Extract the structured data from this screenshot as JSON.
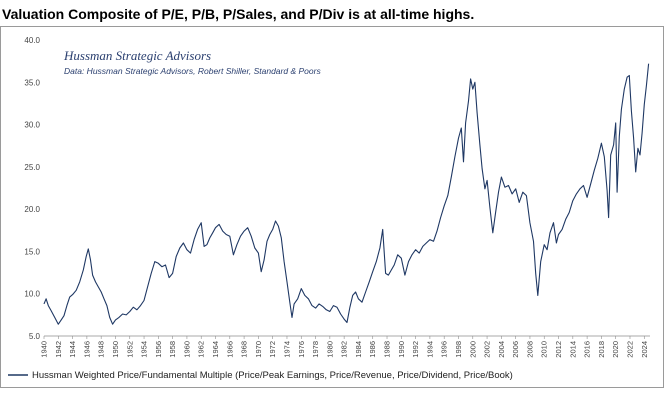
{
  "headline": "Valuation Composite of P/E, P/B, P/Sales, and P/Div is at all-time highs.",
  "chart_data": {
    "type": "line",
    "annotation_title": "Hussman Strategic Advisors",
    "annotation_source": "Data: Hussman Strategic Advisors, Robert Shiller, Standard & Poors",
    "ylim": [
      5,
      40
    ],
    "xlim": [
      1940,
      2024.8
    ],
    "y_ticks": [
      "5.0",
      "10.0",
      "15.0",
      "20.0",
      "25.0",
      "30.0",
      "35.0",
      "40.0"
    ],
    "x_ticks": [
      "1940",
      "1942",
      "1944",
      "1946",
      "1948",
      "1950",
      "1952",
      "1954",
      "1956",
      "1958",
      "1960",
      "1962",
      "1964",
      "1966",
      "1968",
      "1970",
      "1972",
      "1974",
      "1976",
      "1978",
      "1980",
      "1982",
      "1984",
      "1986",
      "1988",
      "1990",
      "1992",
      "1994",
      "1996",
      "1998",
      "2000",
      "2002",
      "2004",
      "2006",
      "2008",
      "2010",
      "2012",
      "2014",
      "2016",
      "2018",
      "2020",
      "2022",
      "2024"
    ],
    "grid": false,
    "legend_position": "bottom",
    "line_color": "#1f3864",
    "series": [
      {
        "name": "Hussman Weighted Price/Fundamental Multiple (Price/Peak Earnings, Price/Revenue, Price/Dividend, Price/Book)",
        "points": [
          [
            1940.0,
            8.8
          ],
          [
            1940.3,
            9.4
          ],
          [
            1940.6,
            8.6
          ],
          [
            1941.0,
            8.0
          ],
          [
            1941.5,
            7.2
          ],
          [
            1942.0,
            6.4
          ],
          [
            1942.4,
            6.9
          ],
          [
            1942.8,
            7.4
          ],
          [
            1943.2,
            8.6
          ],
          [
            1943.6,
            9.6
          ],
          [
            1944.0,
            9.9
          ],
          [
            1944.5,
            10.4
          ],
          [
            1945.0,
            11.4
          ],
          [
            1945.5,
            12.8
          ],
          [
            1945.9,
            14.4
          ],
          [
            1946.2,
            15.3
          ],
          [
            1946.5,
            14.0
          ],
          [
            1946.8,
            12.2
          ],
          [
            1947.2,
            11.4
          ],
          [
            1947.6,
            10.8
          ],
          [
            1948.0,
            10.2
          ],
          [
            1948.4,
            9.4
          ],
          [
            1948.8,
            8.6
          ],
          [
            1949.2,
            7.2
          ],
          [
            1949.6,
            6.4
          ],
          [
            1950.0,
            6.9
          ],
          [
            1950.5,
            7.2
          ],
          [
            1951.0,
            7.6
          ],
          [
            1951.5,
            7.5
          ],
          [
            1952.0,
            7.9
          ],
          [
            1952.5,
            8.4
          ],
          [
            1953.0,
            8.1
          ],
          [
            1953.5,
            8.6
          ],
          [
            1954.0,
            9.2
          ],
          [
            1954.5,
            10.8
          ],
          [
            1955.0,
            12.4
          ],
          [
            1955.5,
            13.8
          ],
          [
            1956.0,
            13.6
          ],
          [
            1956.5,
            13.2
          ],
          [
            1957.0,
            13.4
          ],
          [
            1957.5,
            11.9
          ],
          [
            1958.0,
            12.4
          ],
          [
            1958.5,
            14.4
          ],
          [
            1959.0,
            15.4
          ],
          [
            1959.5,
            16.0
          ],
          [
            1960.0,
            15.2
          ],
          [
            1960.5,
            14.8
          ],
          [
            1961.0,
            16.4
          ],
          [
            1961.5,
            17.6
          ],
          [
            1962.0,
            18.4
          ],
          [
            1962.4,
            15.6
          ],
          [
            1962.8,
            15.8
          ],
          [
            1963.2,
            16.6
          ],
          [
            1963.6,
            17.2
          ],
          [
            1964.0,
            17.8
          ],
          [
            1964.5,
            18.2
          ],
          [
            1965.0,
            17.4
          ],
          [
            1965.5,
            17.0
          ],
          [
            1966.0,
            16.8
          ],
          [
            1966.5,
            14.6
          ],
          [
            1967.0,
            15.8
          ],
          [
            1967.5,
            16.8
          ],
          [
            1968.0,
            17.4
          ],
          [
            1968.5,
            17.8
          ],
          [
            1969.0,
            16.8
          ],
          [
            1969.5,
            15.4
          ],
          [
            1970.0,
            14.8
          ],
          [
            1970.4,
            12.6
          ],
          [
            1970.8,
            14.0
          ],
          [
            1971.2,
            16.2
          ],
          [
            1971.6,
            17.0
          ],
          [
            1972.0,
            17.6
          ],
          [
            1972.4,
            18.6
          ],
          [
            1972.8,
            18.0
          ],
          [
            1973.2,
            16.6
          ],
          [
            1973.6,
            13.8
          ],
          [
            1974.0,
            11.4
          ],
          [
            1974.4,
            9.0
          ],
          [
            1974.7,
            7.2
          ],
          [
            1975.0,
            8.8
          ],
          [
            1975.5,
            9.4
          ],
          [
            1976.0,
            10.6
          ],
          [
            1976.5,
            9.8
          ],
          [
            1977.0,
            9.4
          ],
          [
            1977.5,
            8.6
          ],
          [
            1978.0,
            8.3
          ],
          [
            1978.5,
            8.8
          ],
          [
            1979.0,
            8.5
          ],
          [
            1979.5,
            8.1
          ],
          [
            1980.0,
            7.9
          ],
          [
            1980.5,
            8.6
          ],
          [
            1981.0,
            8.4
          ],
          [
            1981.5,
            7.6
          ],
          [
            1982.0,
            7.0
          ],
          [
            1982.4,
            6.6
          ],
          [
            1982.8,
            8.4
          ],
          [
            1983.2,
            9.8
          ],
          [
            1983.6,
            10.2
          ],
          [
            1984.0,
            9.4
          ],
          [
            1984.5,
            9.0
          ],
          [
            1985.0,
            10.2
          ],
          [
            1985.5,
            11.4
          ],
          [
            1986.0,
            12.6
          ],
          [
            1986.5,
            13.8
          ],
          [
            1987.0,
            15.4
          ],
          [
            1987.4,
            17.6
          ],
          [
            1987.8,
            12.4
          ],
          [
            1988.2,
            12.2
          ],
          [
            1988.6,
            12.8
          ],
          [
            1989.0,
            13.4
          ],
          [
            1989.5,
            14.6
          ],
          [
            1990.0,
            14.2
          ],
          [
            1990.5,
            12.2
          ],
          [
            1991.0,
            13.8
          ],
          [
            1991.5,
            14.6
          ],
          [
            1992.0,
            15.2
          ],
          [
            1992.5,
            14.8
          ],
          [
            1993.0,
            15.6
          ],
          [
            1993.5,
            16.0
          ],
          [
            1994.0,
            16.4
          ],
          [
            1994.5,
            16.2
          ],
          [
            1995.0,
            17.4
          ],
          [
            1995.5,
            19.0
          ],
          [
            1996.0,
            20.4
          ],
          [
            1996.5,
            21.6
          ],
          [
            1997.0,
            23.8
          ],
          [
            1997.5,
            26.2
          ],
          [
            1998.0,
            28.4
          ],
          [
            1998.4,
            29.6
          ],
          [
            1998.7,
            25.6
          ],
          [
            1999.0,
            30.2
          ],
          [
            1999.4,
            32.8
          ],
          [
            1999.7,
            35.4
          ],
          [
            2000.0,
            34.2
          ],
          [
            2000.3,
            35.0
          ],
          [
            2000.6,
            31.4
          ],
          [
            2001.0,
            27.6
          ],
          [
            2001.3,
            24.8
          ],
          [
            2001.7,
            22.4
          ],
          [
            2002.0,
            23.4
          ],
          [
            2002.4,
            20.2
          ],
          [
            2002.8,
            17.2
          ],
          [
            2003.2,
            19.6
          ],
          [
            2003.6,
            22.0
          ],
          [
            2004.0,
            23.8
          ],
          [
            2004.5,
            22.6
          ],
          [
            2005.0,
            22.8
          ],
          [
            2005.5,
            21.8
          ],
          [
            2006.0,
            22.4
          ],
          [
            2006.5,
            20.8
          ],
          [
            2007.0,
            22.0
          ],
          [
            2007.5,
            21.6
          ],
          [
            2008.0,
            18.4
          ],
          [
            2008.5,
            16.2
          ],
          [
            2008.8,
            12.4
          ],
          [
            2009.1,
            9.8
          ],
          [
            2009.5,
            13.8
          ],
          [
            2010.0,
            15.8
          ],
          [
            2010.4,
            15.2
          ],
          [
            2010.8,
            17.2
          ],
          [
            2011.3,
            18.4
          ],
          [
            2011.7,
            16.0
          ],
          [
            2012.0,
            17.0
          ],
          [
            2012.5,
            17.6
          ],
          [
            2013.0,
            18.8
          ],
          [
            2013.5,
            19.6
          ],
          [
            2014.0,
            21.0
          ],
          [
            2014.5,
            21.8
          ],
          [
            2015.0,
            22.4
          ],
          [
            2015.5,
            22.8
          ],
          [
            2016.0,
            21.4
          ],
          [
            2016.5,
            23.0
          ],
          [
            2017.0,
            24.6
          ],
          [
            2017.5,
            26.0
          ],
          [
            2018.0,
            27.8
          ],
          [
            2018.4,
            26.2
          ],
          [
            2018.8,
            22.2
          ],
          [
            2019.0,
            19.0
          ],
          [
            2019.3,
            26.4
          ],
          [
            2019.7,
            27.6
          ],
          [
            2020.0,
            30.2
          ],
          [
            2020.2,
            22.0
          ],
          [
            2020.5,
            28.6
          ],
          [
            2020.8,
            31.8
          ],
          [
            2021.2,
            34.2
          ],
          [
            2021.6,
            35.6
          ],
          [
            2021.9,
            35.8
          ],
          [
            2022.2,
            31.6
          ],
          [
            2022.5,
            28.4
          ],
          [
            2022.8,
            24.4
          ],
          [
            2023.1,
            27.2
          ],
          [
            2023.4,
            26.4
          ],
          [
            2023.7,
            29.0
          ],
          [
            2024.0,
            32.4
          ],
          [
            2024.3,
            34.6
          ],
          [
            2024.6,
            37.2
          ]
        ]
      }
    ]
  }
}
